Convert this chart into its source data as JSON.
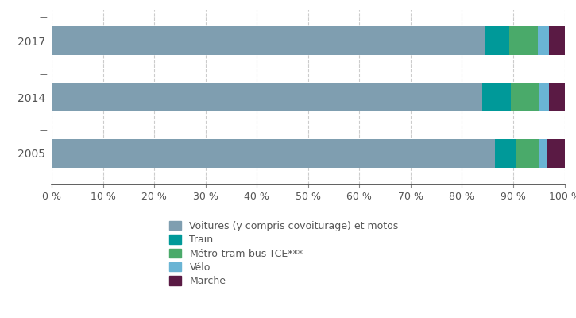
{
  "years": [
    "2017",
    "2014",
    "2005"
  ],
  "categories": [
    "Voitures (y compris covoiturage) et motos",
    "Train",
    "Métro-tram-bus-TCE***",
    "Vélo",
    "Marche"
  ],
  "values": {
    "2005": [
      86.5,
      4.2,
      4.3,
      1.5,
      3.5
    ],
    "2014": [
      84.0,
      5.5,
      5.5,
      2.0,
      3.0
    ],
    "2017": [
      84.5,
      4.8,
      5.5,
      2.2,
      3.0
    ]
  },
  "colors": [
    "#7f9eb0",
    "#009999",
    "#4aaa6a",
    "#6ab4d4",
    "#5a1a44"
  ],
  "background_color": "#ffffff",
  "grid_color": "#cccccc",
  "tick_label_color": "#555555",
  "bar_height": 0.52,
  "legend_labels": [
    "Voitures (y compris covoiturage) et motos",
    "Train",
    "Métro-tram-bus-TCE***",
    "Vélo",
    "Marche"
  ]
}
